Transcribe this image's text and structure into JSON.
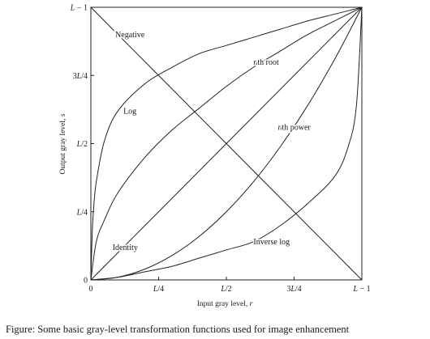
{
  "chart_data": {
    "type": "line",
    "xlabel": "Input gray level, r",
    "ylabel": "Output gray level, s",
    "xlim": [
      0,
      1
    ],
    "ylim": [
      0,
      1
    ],
    "x_ticks": [
      {
        "value": 0,
        "label": "0"
      },
      {
        "value": 0.25,
        "label": "L/4"
      },
      {
        "value": 0.5,
        "label": "L/2"
      },
      {
        "value": 0.75,
        "label": "3L/4"
      },
      {
        "value": 1,
        "label": "L − 1"
      }
    ],
    "y_ticks": [
      {
        "value": 0,
        "label": "0"
      },
      {
        "value": 0.25,
        "label": "L/4"
      },
      {
        "value": 0.5,
        "label": "L/2"
      },
      {
        "value": 0.75,
        "label": "3L/4"
      },
      {
        "value": 1,
        "label": "L − 1"
      }
    ],
    "grid": false,
    "series": [
      {
        "name": "Negative",
        "x": [
          0,
          0.25,
          0.5,
          0.75,
          1
        ],
        "y": [
          1,
          0.75,
          0.5,
          0.25,
          0
        ]
      },
      {
        "name": "Identity",
        "x": [
          0,
          0.25,
          0.5,
          0.75,
          1
        ],
        "y": [
          0,
          0.25,
          0.5,
          0.75,
          1
        ]
      },
      {
        "name": "Log",
        "x": [
          0,
          0.005,
          0.01,
          0.02,
          0.05,
          0.1,
          0.2,
          0.3,
          0.4,
          0.5,
          0.6,
          0.7,
          0.8,
          0.9,
          1
        ],
        "y": [
          0,
          0.174,
          0.26,
          0.36,
          0.51,
          0.62,
          0.72,
          0.78,
          0.83,
          0.86,
          0.89,
          0.92,
          0.95,
          0.975,
          1
        ]
      },
      {
        "name": "nth root",
        "x": [
          0,
          0.02,
          0.05,
          0.1,
          0.2,
          0.3,
          0.4,
          0.5,
          0.6,
          0.7,
          0.8,
          0.9,
          1
        ],
        "y": [
          0,
          0.14,
          0.22,
          0.32,
          0.45,
          0.55,
          0.63,
          0.71,
          0.78,
          0.84,
          0.9,
          0.95,
          1
        ]
      },
      {
        "name": "nth power",
        "x": [
          0,
          0.1,
          0.2,
          0.3,
          0.4,
          0.5,
          0.6,
          0.7,
          0.8,
          0.9,
          1
        ],
        "y": [
          0,
          0.01,
          0.04,
          0.09,
          0.16,
          0.25,
          0.36,
          0.49,
          0.64,
          0.81,
          1
        ]
      },
      {
        "name": "Inverse log",
        "x": [
          0,
          0.1,
          0.2,
          0.3,
          0.4,
          0.5,
          0.6,
          0.7,
          0.8,
          0.9,
          0.95,
          0.98,
          1
        ],
        "y": [
          0,
          0.01,
          0.03,
          0.05,
          0.08,
          0.11,
          0.14,
          0.2,
          0.28,
          0.38,
          0.49,
          0.64,
          1
        ]
      }
    ],
    "annotations": [
      {
        "text": "Negative",
        "x": 0.09,
        "y": 0.89
      },
      {
        "text": "nth root",
        "x": 0.6,
        "y": 0.79
      },
      {
        "text": "Log",
        "x": 0.12,
        "y": 0.61
      },
      {
        "text": "nth power",
        "x": 0.69,
        "y": 0.55
      },
      {
        "text": "Identity",
        "x": 0.08,
        "y": 0.11
      },
      {
        "text": "Inverse log",
        "x": 0.6,
        "y": 0.13
      }
    ]
  },
  "caption": "Figure: Some basic gray-level transformation functions used for image enhancement"
}
